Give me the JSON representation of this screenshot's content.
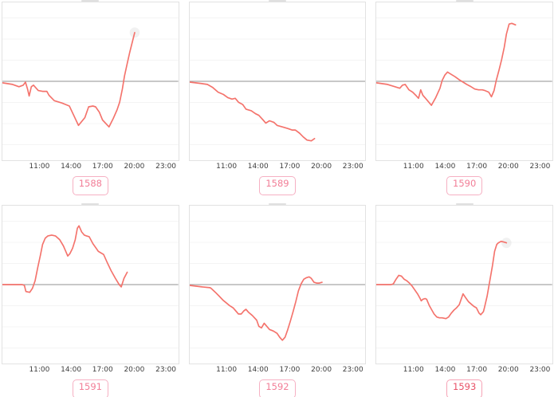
{
  "colors": {
    "line": "#f4736c",
    "baseline": "#a8a8a8",
    "gridline": "#f4f4f4",
    "plot_border": "#e2e2e2",
    "tick_text": "#3d3d3d",
    "badge_border": "#f6b0c3",
    "badge_text_default": "#f27e97",
    "halo": "#c8c8c8"
  },
  "axis": {
    "tick_labels": [
      "11:00",
      "14:00",
      "17:00",
      "20:00",
      "23:00"
    ],
    "tick_hours": [
      11,
      14,
      17,
      20,
      23
    ]
  },
  "chart_data": [
    {
      "type": "line",
      "label": "1588",
      "x_ticks": [
        "11:00",
        "14:00",
        "17:00",
        "20:00",
        "23:00"
      ],
      "x_tick_hours": [
        11,
        14,
        17,
        20,
        23
      ],
      "x_range_hours": [
        7.75,
        24.17
      ],
      "ylim": [
        -1,
        1
      ],
      "y_unit": "relative to baseline (0 = gray zero line, 1 = plot half-height)",
      "baseline": 0,
      "grid": true,
      "line_color": "#f4736c",
      "end_halo": true,
      "badge_text_color": "#f27e97",
      "badge_border_color": "#f6b0c3",
      "x_hours": [
        7.75,
        8.7,
        9.3,
        9.7,
        9.9,
        10.1,
        10.25,
        10.45,
        10.65,
        11.1,
        11.5,
        11.9,
        12.1,
        12.6,
        13.3,
        14.0,
        14.85,
        15.45,
        15.8,
        16.2,
        16.45,
        16.8,
        17.1,
        17.7,
        18.1,
        18.45,
        18.7,
        18.95,
        19.15,
        19.4,
        19.65,
        19.9,
        20.1
      ],
      "y": [
        -0.02,
        -0.04,
        -0.07,
        -0.05,
        -0.01,
        -0.1,
        -0.19,
        -0.07,
        -0.05,
        -0.12,
        -0.13,
        -0.13,
        -0.18,
        -0.25,
        -0.28,
        -0.32,
        -0.57,
        -0.47,
        -0.33,
        -0.32,
        -0.33,
        -0.4,
        -0.5,
        -0.59,
        -0.48,
        -0.37,
        -0.27,
        -0.1,
        0.07,
        0.23,
        0.38,
        0.52,
        0.63
      ]
    },
    {
      "type": "line",
      "label": "1589",
      "x_ticks": [
        "11:00",
        "14:00",
        "17:00",
        "20:00",
        "23:00"
      ],
      "x_tick_hours": [
        11,
        14,
        17,
        20,
        23
      ],
      "x_range_hours": [
        7.75,
        24.17
      ],
      "ylim": [
        -1,
        1
      ],
      "y_unit": "relative to baseline (0 = gray zero line, 1 = plot half-height)",
      "baseline": 0,
      "grid": true,
      "line_color": "#f4736c",
      "end_halo": false,
      "badge_text_color": "#f27e97",
      "badge_border_color": "#f6b0c3",
      "x_hours": [
        7.75,
        8.9,
        9.4,
        9.9,
        10.4,
        10.9,
        11.3,
        11.7,
        12.0,
        12.3,
        12.7,
        13.0,
        13.5,
        13.9,
        14.2,
        14.6,
        14.85,
        15.2,
        15.6,
        15.9,
        16.4,
        16.9,
        17.3,
        17.6,
        18.0,
        18.35,
        18.7,
        19.1,
        19.4
      ],
      "y": [
        -0.01,
        -0.03,
        -0.04,
        -0.08,
        -0.14,
        -0.17,
        -0.21,
        -0.23,
        -0.22,
        -0.27,
        -0.3,
        -0.36,
        -0.38,
        -0.42,
        -0.44,
        -0.5,
        -0.54,
        -0.51,
        -0.53,
        -0.57,
        -0.59,
        -0.61,
        -0.63,
        -0.63,
        -0.67,
        -0.72,
        -0.76,
        -0.77,
        -0.74
      ]
    },
    {
      "type": "line",
      "label": "1590",
      "x_ticks": [
        "11:00",
        "14:00",
        "17:00",
        "20:00",
        "23:00"
      ],
      "x_tick_hours": [
        11,
        14,
        17,
        20,
        23
      ],
      "x_range_hours": [
        7.75,
        24.17
      ],
      "ylim": [
        -1,
        1
      ],
      "y_unit": "relative to baseline (0 = gray zero line, 1 = plot half-height)",
      "baseline": 0,
      "grid": true,
      "line_color": "#f4736c",
      "end_halo": false,
      "badge_text_color": "#f27e97",
      "badge_border_color": "#f6b0c3",
      "x_hours": [
        7.75,
        8.8,
        9.5,
        9.95,
        10.2,
        10.45,
        10.8,
        11.15,
        11.5,
        11.7,
        11.9,
        12.1,
        12.35,
        12.9,
        13.3,
        13.7,
        13.9,
        14.15,
        14.4,
        14.75,
        15.1,
        15.5,
        15.85,
        16.2,
        16.6,
        16.95,
        17.3,
        17.65,
        17.9,
        18.25,
        18.5,
        18.75,
        18.95,
        19.2,
        19.45,
        19.7,
        19.9,
        20.15,
        20.4,
        20.75
      ],
      "y": [
        -0.02,
        -0.04,
        -0.07,
        -0.09,
        -0.05,
        -0.04,
        -0.11,
        -0.14,
        -0.19,
        -0.22,
        -0.11,
        -0.18,
        -0.22,
        -0.31,
        -0.21,
        -0.09,
        0.01,
        0.08,
        0.12,
        0.09,
        0.06,
        0.02,
        -0.01,
        -0.04,
        -0.07,
        -0.1,
        -0.11,
        -0.11,
        -0.12,
        -0.14,
        -0.2,
        -0.12,
        0.01,
        0.14,
        0.28,
        0.44,
        0.61,
        0.74,
        0.75,
        0.73
      ]
    },
    {
      "type": "line",
      "label": "1591",
      "x_ticks": [
        "11:00",
        "14:00",
        "17:00",
        "20:00",
        "23:00"
      ],
      "x_tick_hours": [
        11,
        14,
        17,
        20,
        23
      ],
      "x_range_hours": [
        7.75,
        24.17
      ],
      "ylim": [
        -1,
        1
      ],
      "y_unit": "relative to baseline (0 = gray zero line, 1 = plot half-height)",
      "baseline": 0,
      "grid": true,
      "line_color": "#f4736c",
      "end_halo": false,
      "badge_text_color": "#f27e97",
      "badge_border_color": "#f6b0c3",
      "x_hours": [
        7.75,
        9.6,
        9.8,
        9.95,
        10.3,
        10.55,
        10.8,
        11.05,
        11.3,
        11.5,
        11.75,
        12.0,
        12.35,
        12.7,
        13.1,
        13.45,
        13.7,
        13.85,
        14.05,
        14.3,
        14.55,
        14.75,
        14.9,
        15.15,
        15.4,
        15.6,
        15.85,
        16.2,
        16.45,
        16.7,
        16.95,
        17.2,
        17.55,
        17.9,
        18.3,
        18.65,
        18.85,
        19.1,
        19.4
      ],
      "y": [
        0,
        0,
        -0.01,
        -0.09,
        -0.1,
        -0.05,
        0.05,
        0.22,
        0.38,
        0.52,
        0.6,
        0.63,
        0.64,
        0.63,
        0.58,
        0.5,
        0.42,
        0.37,
        0.4,
        0.47,
        0.58,
        0.73,
        0.76,
        0.68,
        0.64,
        0.63,
        0.62,
        0.53,
        0.48,
        0.43,
        0.41,
        0.39,
        0.28,
        0.18,
        0.08,
        0.0,
        -0.03,
        0.08,
        0.16
      ]
    },
    {
      "type": "line",
      "label": "1592",
      "x_ticks": [
        "11:00",
        "14:00",
        "17:00",
        "20:00",
        "23:00"
      ],
      "x_tick_hours": [
        11,
        14,
        17,
        20,
        23
      ],
      "x_range_hours": [
        7.75,
        24.17
      ],
      "ylim": [
        -1,
        1
      ],
      "y_unit": "relative to baseline (0 = gray zero line, 1 = plot half-height)",
      "baseline": 0,
      "grid": true,
      "line_color": "#f4736c",
      "end_halo": false,
      "badge_text_color": "#f27e97",
      "badge_border_color": "#f6b0c3",
      "x_hours": [
        7.75,
        8.9,
        9.65,
        9.75,
        10.15,
        10.5,
        10.85,
        11.2,
        11.45,
        11.8,
        12.05,
        12.3,
        12.55,
        12.8,
        13.0,
        13.25,
        13.6,
        14.0,
        14.2,
        14.45,
        14.7,
        14.95,
        15.2,
        15.55,
        15.9,
        16.15,
        16.4,
        16.65,
        16.9,
        17.15,
        17.4,
        17.65,
        17.9,
        18.15,
        18.4,
        18.65,
        18.9,
        19.1,
        19.35,
        19.6,
        19.85,
        20.1
      ],
      "y": [
        -0.01,
        -0.03,
        -0.04,
        -0.05,
        -0.1,
        -0.15,
        -0.2,
        -0.24,
        -0.27,
        -0.3,
        -0.34,
        -0.38,
        -0.38,
        -0.34,
        -0.32,
        -0.36,
        -0.4,
        -0.46,
        -0.54,
        -0.56,
        -0.5,
        -0.54,
        -0.58,
        -0.6,
        -0.63,
        -0.68,
        -0.72,
        -0.68,
        -0.58,
        -0.47,
        -0.35,
        -0.22,
        -0.08,
        0.01,
        0.07,
        0.09,
        0.1,
        0.08,
        0.03,
        0.02,
        0.02,
        0.03
      ]
    },
    {
      "type": "line",
      "label": "1593",
      "x_ticks": [
        "11:00",
        "14:00",
        "17:00",
        "20:00",
        "23:00"
      ],
      "x_tick_hours": [
        11,
        14,
        17,
        20,
        23
      ],
      "x_range_hours": [
        7.75,
        24.17
      ],
      "ylim": [
        -1,
        1
      ],
      "y_unit": "relative to baseline (0 = gray zero line, 1 = plot half-height)",
      "baseline": 0,
      "grid": true,
      "line_color": "#f4736c",
      "end_halo": true,
      "badge_text_color": "#e85066",
      "badge_border_color": "#f6a3b6",
      "x_hours": [
        7.75,
        9.15,
        9.35,
        9.6,
        9.85,
        10.1,
        10.35,
        10.6,
        10.85,
        11.1,
        11.35,
        11.6,
        11.85,
        11.95,
        12.1,
        12.3,
        12.45,
        12.7,
        12.9,
        13.15,
        13.4,
        13.65,
        13.9,
        14.25,
        14.5,
        14.75,
        15.0,
        15.25,
        15.5,
        15.85,
        16.1,
        16.35,
        16.6,
        16.85,
        17.1,
        17.35,
        17.5,
        17.75,
        17.85,
        18.1,
        18.35,
        18.6,
        18.8,
        19.0,
        19.15,
        19.4,
        19.65,
        19.9
      ],
      "y": [
        0,
        0,
        0.01,
        0.07,
        0.12,
        0.11,
        0.07,
        0.05,
        0.02,
        -0.02,
        -0.07,
        -0.12,
        -0.18,
        -0.21,
        -0.19,
        -0.18,
        -0.19,
        -0.27,
        -0.32,
        -0.38,
        -0.42,
        -0.43,
        -0.43,
        -0.44,
        -0.42,
        -0.37,
        -0.33,
        -0.3,
        -0.26,
        -0.12,
        -0.17,
        -0.22,
        -0.25,
        -0.28,
        -0.3,
        -0.37,
        -0.39,
        -0.35,
        -0.3,
        -0.15,
        0.05,
        0.25,
        0.43,
        0.52,
        0.54,
        0.56,
        0.55,
        0.54
      ]
    }
  ]
}
